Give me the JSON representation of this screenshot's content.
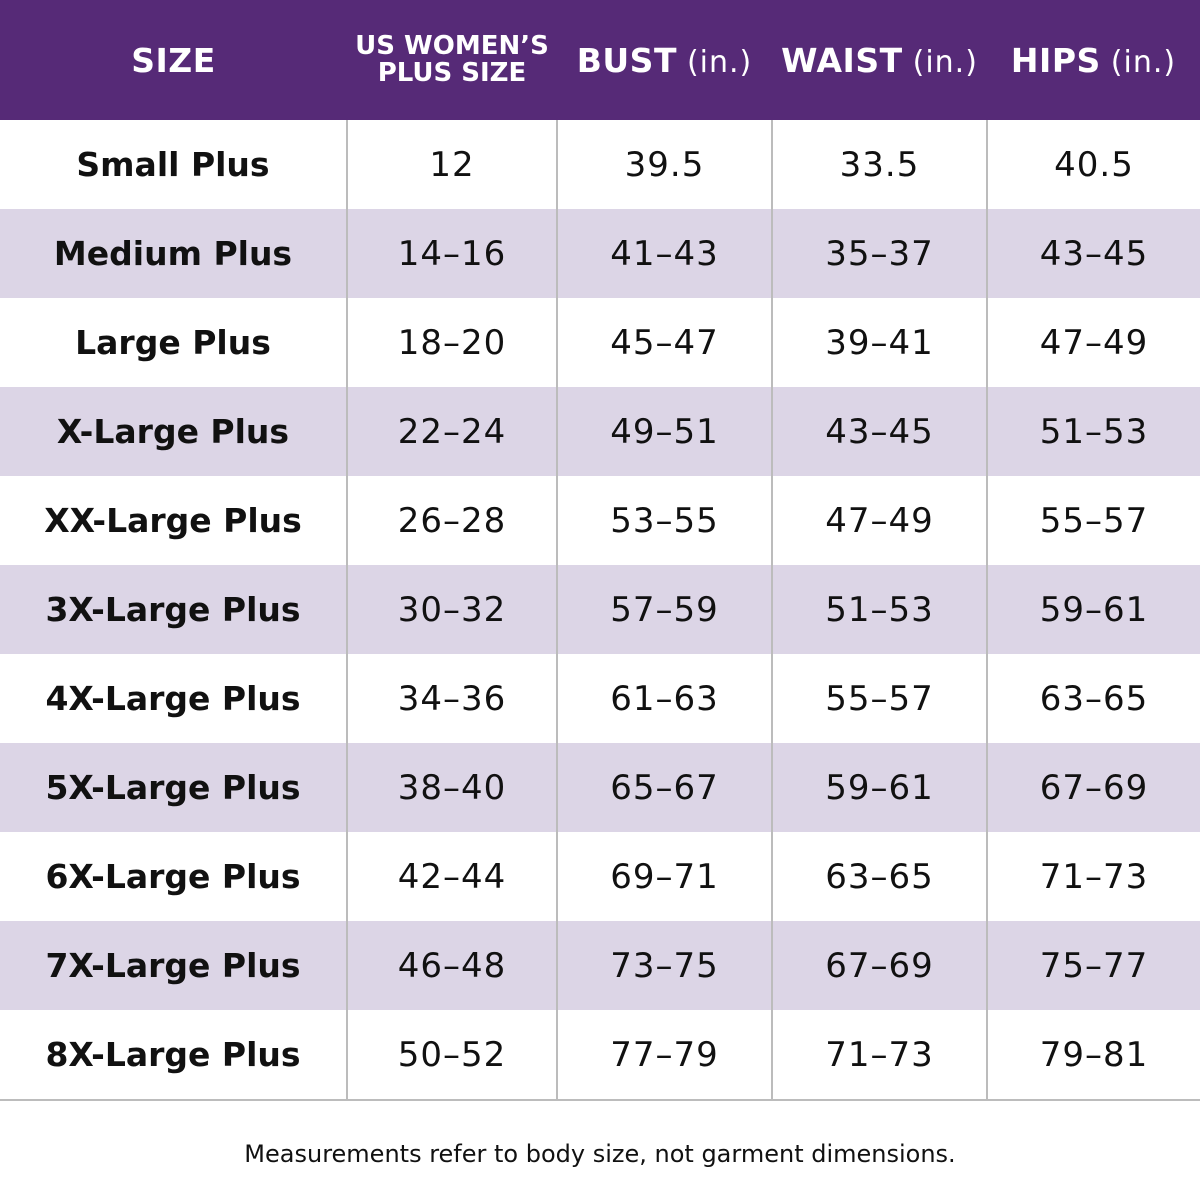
{
  "header": {
    "size": "SIZE",
    "us_plus_line1": "US WOMEN’S",
    "us_plus_line2": "PLUS SIZE",
    "bust": "BUST",
    "waist": "WAIST",
    "hips": "HIPS",
    "unit": "(in.)"
  },
  "rows": [
    {
      "size": "Small Plus",
      "us": "12",
      "bust": "39.5",
      "waist": "33.5",
      "hips": "40.5"
    },
    {
      "size": "Medium Plus",
      "us": "14–16",
      "bust": "41–43",
      "waist": "35–37",
      "hips": "43–45"
    },
    {
      "size": "Large Plus",
      "us": "18–20",
      "bust": "45–47",
      "waist": "39–41",
      "hips": "47–49"
    },
    {
      "size": "X-Large Plus",
      "us": "22–24",
      "bust": "49–51",
      "waist": "43–45",
      "hips": "51–53"
    },
    {
      "size": "XX-Large Plus",
      "us": "26–28",
      "bust": "53–55",
      "waist": "47–49",
      "hips": "55–57"
    },
    {
      "size": "3X-Large Plus",
      "us": "30–32",
      "bust": "57–59",
      "waist": "51–53",
      "hips": "59–61"
    },
    {
      "size": "4X-Large Plus",
      "us": "34–36",
      "bust": "61–63",
      "waist": "55–57",
      "hips": "63–65"
    },
    {
      "size": "5X-Large Plus",
      "us": "38–40",
      "bust": "65–67",
      "waist": "59–61",
      "hips": "67–69"
    },
    {
      "size": "6X-Large Plus",
      "us": "42–44",
      "bust": "69–71",
      "waist": "63–65",
      "hips": "71–73"
    },
    {
      "size": "7X-Large Plus",
      "us": "46–48",
      "bust": "73–75",
      "waist": "67–69",
      "hips": "75–77"
    },
    {
      "size": "8X-Large Plus",
      "us": "50–52",
      "bust": "77–79",
      "waist": "71–73",
      "hips": "79–81"
    }
  ],
  "footnote": "Measurements refer to body size, not garment dimensions.",
  "colors": {
    "header_background": "#562a77",
    "stripe_row": "#dcd5e6",
    "divider": "#bcbcbc"
  }
}
